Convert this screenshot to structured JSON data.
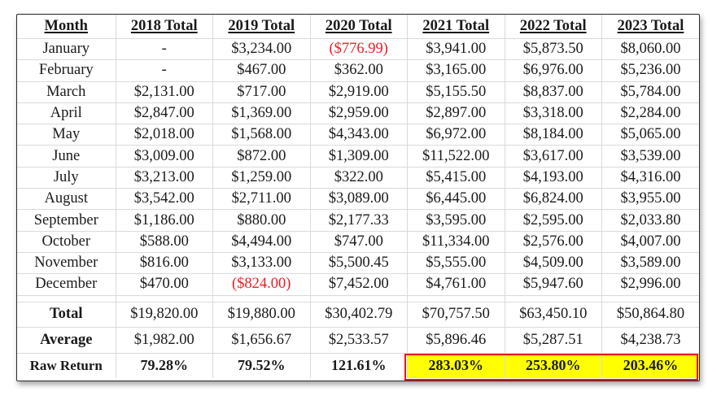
{
  "table": {
    "headers": [
      "Month",
      "2018 Total",
      "2019 Total",
      "2020 Total",
      "2021 Total",
      "2022 Total",
      "2023 Total"
    ],
    "months": [
      {
        "month": "January",
        "values": [
          "-",
          "$3,234.00",
          "($776.99)",
          "$3,941.00",
          "$5,873.50",
          "$8,060.00"
        ]
      },
      {
        "month": "February",
        "values": [
          "-",
          "$467.00",
          "$362.00",
          "$3,165.00",
          "$6,976.00",
          "$5,236.00"
        ]
      },
      {
        "month": "March",
        "values": [
          "$2,131.00",
          "$717.00",
          "$2,919.00",
          "$5,155.50",
          "$8,837.00",
          "$5,784.00"
        ]
      },
      {
        "month": "April",
        "values": [
          "$2,847.00",
          "$1,369.00",
          "$2,959.00",
          "$2,897.00",
          "$3,318.00",
          "$2,284.00"
        ]
      },
      {
        "month": "May",
        "values": [
          "$2,018.00",
          "$1,568.00",
          "$4,343.00",
          "$6,972.00",
          "$8,184.00",
          "$5,065.00"
        ]
      },
      {
        "month": "June",
        "values": [
          "$3,009.00",
          "$872.00",
          "$1,309.00",
          "$11,522.00",
          "$3,617.00",
          "$3,539.00"
        ]
      },
      {
        "month": "July",
        "values": [
          "$3,213.00",
          "$1,259.00",
          "$322.00",
          "$5,415.00",
          "$4,193.00",
          "$4,316.00"
        ]
      },
      {
        "month": "August",
        "values": [
          "$3,542.00",
          "$2,711.00",
          "$3,089.00",
          "$6,445.00",
          "$6,824.00",
          "$3,955.00"
        ]
      },
      {
        "month": "September",
        "values": [
          "$1,186.00",
          "$880.00",
          "$2,177.33",
          "$3,595.00",
          "$2,595.00",
          "$2,033.80"
        ]
      },
      {
        "month": "October",
        "values": [
          "$588.00",
          "$4,494.00",
          "$747.00",
          "$11,334.00",
          "$2,576.00",
          "$4,007.00"
        ]
      },
      {
        "month": "November",
        "values": [
          "$816.00",
          "$3,133.00",
          "$5,500.45",
          "$5,555.00",
          "$4,509.00",
          "$3,589.00"
        ]
      },
      {
        "month": "December",
        "values": [
          "$470.00",
          "($824.00)",
          "$7,452.00",
          "$4,761.00",
          "$5,947.60",
          "$2,996.00"
        ]
      }
    ],
    "summary": [
      {
        "label": "Total",
        "values": [
          "$19,820.00",
          "$19,880.00",
          "$30,402.79",
          "$70,757.50",
          "$63,450.10",
          "$50,864.80"
        ]
      },
      {
        "label": "Average",
        "values": [
          "$1,982.00",
          "$1,656.67",
          "$2,533.57",
          "$5,896.46",
          "$5,287.51",
          "$4,238.73"
        ]
      },
      {
        "label": "Raw Return",
        "values": [
          "79.28%",
          "79.52%",
          "121.61%",
          "283.03%",
          "253.80%",
          "203.46%"
        ]
      }
    ],
    "negative_cells": [
      [
        0,
        2
      ],
      [
        11,
        1
      ]
    ],
    "highlighted_return_years": [
      "2021 Total",
      "2022 Total",
      "2023 Total"
    ],
    "colors": {
      "negative": "#ef1c24",
      "highlight_fill": "#ffff00",
      "highlight_border": "#e8151b"
    }
  }
}
